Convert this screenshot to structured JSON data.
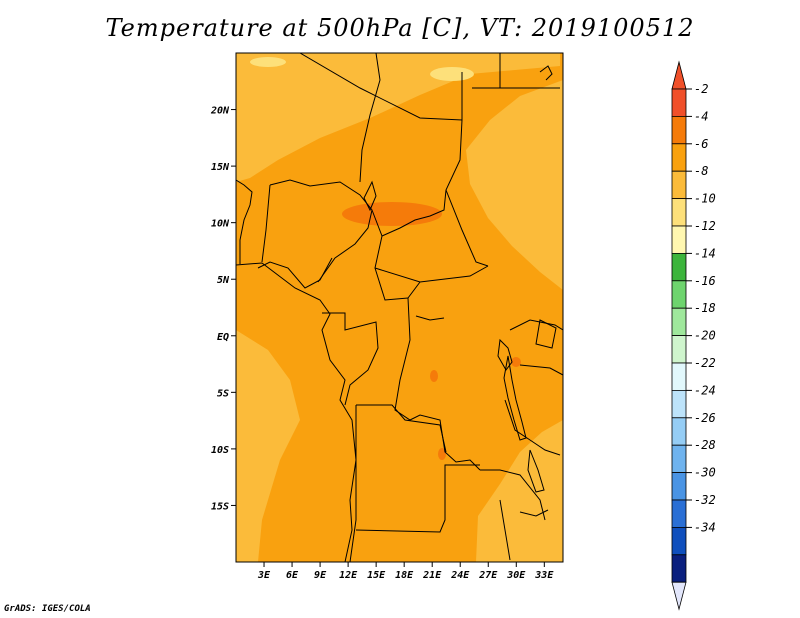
{
  "chart_data": {
    "type": "heatmap",
    "title": "Temperature at 500hPa [C], VT: 2019100512",
    "variable": "Temperature at 500hPa",
    "units": "C",
    "valid_time": "2019100512",
    "xlim": [
      0,
      35
    ],
    "ylim": [
      -20,
      25
    ],
    "x_ticks": [
      3,
      6,
      9,
      12,
      15,
      18,
      21,
      24,
      27,
      30,
      33
    ],
    "x_tick_labels": [
      "3E",
      "6E",
      "9E",
      "12E",
      "15E",
      "18E",
      "21E",
      "24E",
      "27E",
      "30E",
      "33E"
    ],
    "y_ticks": [
      20,
      15,
      10,
      5,
      0,
      -5,
      -10,
      -15
    ],
    "y_tick_labels": [
      "20N",
      "15N",
      "10N",
      "5N",
      "EQ",
      "5S",
      "10S",
      "15S"
    ],
    "colorbar": {
      "levels": [
        "-2",
        "-4",
        "-6",
        "-8",
        "-10",
        "-12",
        "-14",
        "-16",
        "-18",
        "-20",
        "-22",
        "-24",
        "-26",
        "-28",
        "-30",
        "-32",
        "-34"
      ],
      "colors": [
        "#f0502a",
        "#f57b0a",
        "#f9a10f",
        "#fbbb3a",
        "#fde07a",
        "#fff7b0",
        "#3cb43c",
        "#6ed46e",
        "#9fe89c",
        "#cff5cd",
        "#e2f8fc",
        "#bde3fa",
        "#95cdf5",
        "#6fb3ee",
        "#4a94e4",
        "#2a6fd5",
        "#0f4fbd",
        "#0a1f7e"
      ],
      "over_color": "#f0502a",
      "under_color": "#e2e6fb"
    },
    "regions": [
      {
        "name": "background",
        "value": -5,
        "color": "#f9a10f"
      },
      {
        "name": "north-sahara",
        "value": -7,
        "color": "#fbbb3a"
      },
      {
        "name": "northeast",
        "value": -7,
        "color": "#fbbb3a"
      },
      {
        "name": "southeast",
        "value": -7,
        "color": "#fbbb3a"
      },
      {
        "name": "west-ocean",
        "value": -7,
        "color": "#fbbb3a"
      },
      {
        "name": "cold-spot",
        "value": -9,
        "color": "#fde07a"
      },
      {
        "name": "warm-core",
        "value": -3,
        "color": "#f57b0a"
      }
    ]
  },
  "credit": "GrADS: IGES/COLA"
}
